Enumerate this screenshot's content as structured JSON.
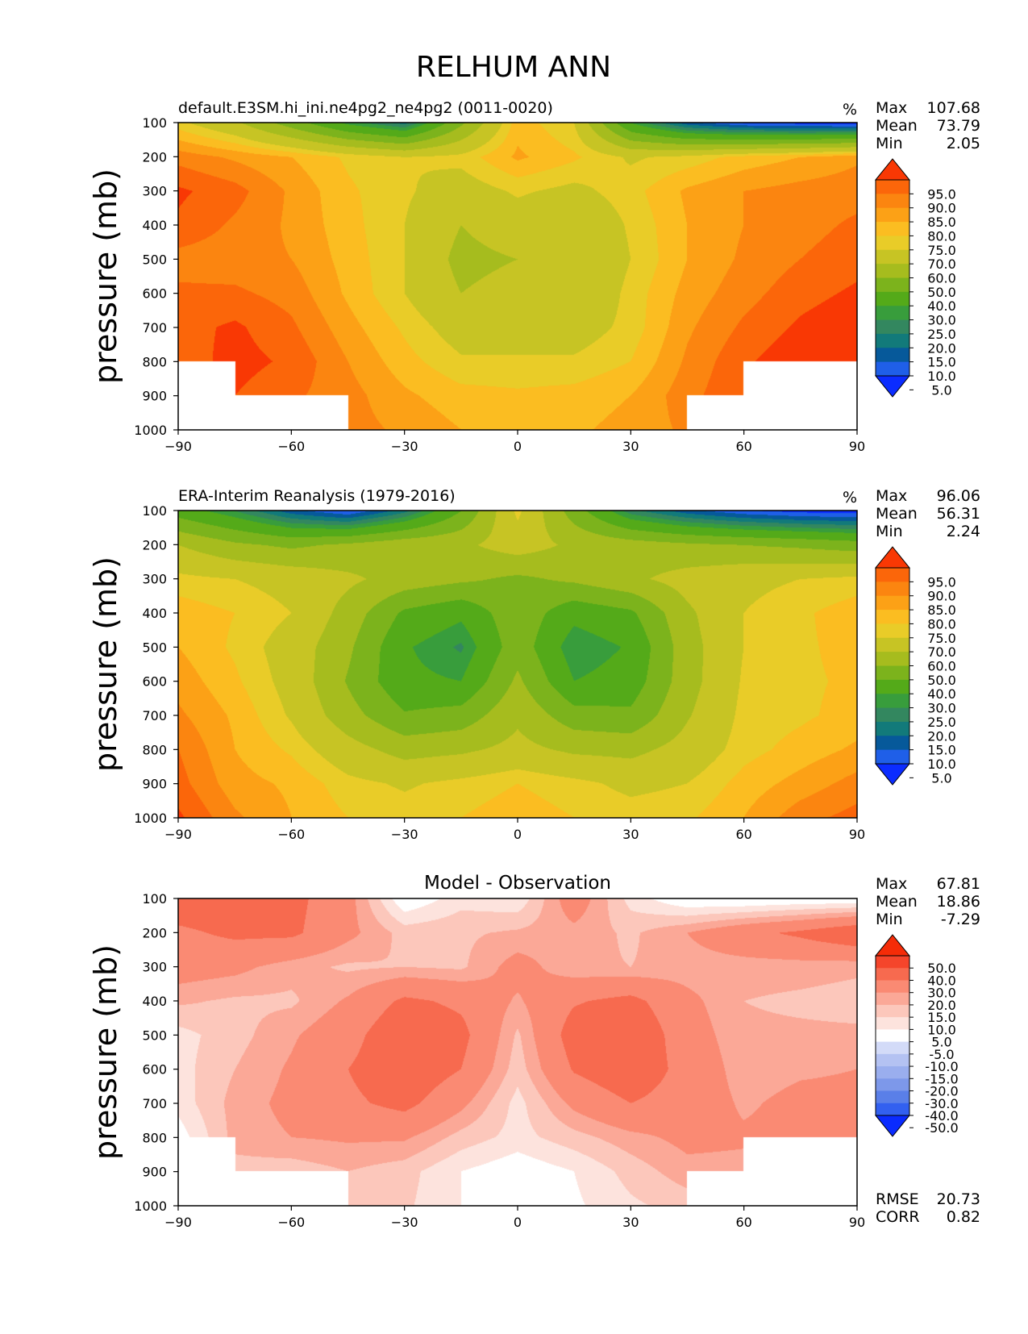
{
  "figure": {
    "title": "RELHUM ANN"
  },
  "colors": {
    "seq_levels": [
      -1000,
      5,
      10,
      15,
      20,
      25,
      30,
      40,
      50,
      60,
      70,
      75,
      80,
      85,
      90,
      95,
      1000
    ],
    "seq_colors": [
      "#0b2cff",
      "#1f5fe8",
      "#06599a",
      "#127a7a",
      "#33875f",
      "#389d3c",
      "#54aa19",
      "#7cb31c",
      "#a6bc1e",
      "#c7c424",
      "#e9cc28",
      "#fbbd21",
      "#fca116",
      "#fb8510",
      "#fb660a",
      "#f93804"
    ],
    "diff_levels": [
      -1000,
      -50,
      -40,
      -30,
      -20,
      -15,
      -10,
      -5,
      5,
      10,
      15,
      20,
      30,
      40,
      50,
      1000
    ],
    "diff_colors": [
      "#0a2bff",
      "#3260f0",
      "#5a7fe8",
      "#7d98ea",
      "#9aaeee",
      "#b4c2f2",
      "#d3dbf8",
      "#ffffff",
      "#fde3dd",
      "#fcc7bb",
      "#fba897",
      "#fa8a73",
      "#f76a4f",
      "#f5452b",
      "#f52c08"
    ]
  },
  "chart_data": [
    {
      "type": "contour",
      "panel": "model",
      "title_left": "default.E3SM.hi_ini.ne4pg2_ne4pg2 (0011-0020)",
      "units": "%",
      "stats": [
        {
          "label": "Max",
          "value": "107.68"
        },
        {
          "label": "Mean",
          "value": "73.79"
        },
        {
          "label": "Min",
          "value": "2.05"
        }
      ],
      "xlabel": "",
      "ylabel": "pressure (mb)",
      "x_ticks": [
        "−90",
        "−60",
        "−30",
        "0",
        "30",
        "60",
        "90"
      ],
      "y_ticks": [
        "100",
        "200",
        "300",
        "400",
        "500",
        "600",
        "700",
        "800",
        "900",
        "1000"
      ],
      "xlim": [
        -90,
        90
      ],
      "ylim": [
        1000,
        100
      ],
      "colorbar_labels": [
        "95.0",
        "90.0",
        "85.0",
        "80.0",
        "75.0",
        "70.0",
        "60.0",
        "50.0",
        "40.0",
        "30.0",
        "25.0",
        "20.0",
        "15.0",
        "10.0",
        "5.0"
      ],
      "lat": [
        -90,
        -75,
        -60,
        -45,
        -30,
        -15,
        0,
        15,
        30,
        45,
        60,
        75,
        90
      ],
      "plev": [
        100,
        200,
        300,
        400,
        500,
        600,
        700,
        800,
        900,
        1000
      ],
      "values": [
        [
          72,
          62,
          45,
          28,
          18,
          48,
          78,
          70,
          30,
          12,
          5,
          3,
          2
        ],
        [
          88,
          84,
          80,
          74,
          70,
          72,
          81,
          76,
          69,
          72,
          77,
          80,
          84
        ],
        [
          96,
          92,
          84,
          76,
          71,
          66,
          71,
          68,
          73,
          81,
          85,
          87,
          88
        ],
        [
          94,
          89,
          84,
          77,
          70,
          60,
          66,
          62,
          71,
          80,
          85,
          88,
          91
        ],
        [
          88,
          87,
          85,
          78,
          70,
          57,
          60,
          60,
          70,
          80,
          86,
          90,
          93
        ],
        [
          91,
          91,
          88,
          79,
          70,
          60,
          64,
          61,
          72,
          82,
          88,
          93,
          96
        ],
        [
          93,
          96,
          91,
          82,
          74,
          66,
          66,
          66,
          72,
          84,
          91,
          96,
          99
        ],
        [
          92,
          97,
          94,
          85,
          77,
          71,
          71,
          71,
          75,
          86,
          94,
          99,
          101
        ],
        [
          null,
          95,
          91,
          87,
          81,
          77,
          76,
          77,
          80,
          88,
          95,
          null,
          103
        ],
        [
          null,
          null,
          null,
          87,
          84,
          80,
          79,
          79,
          82,
          86,
          null,
          null,
          105
        ]
      ]
    },
    {
      "type": "contour",
      "panel": "observation",
      "title_left": "ERA-Interim Reanalysis (1979-2016)",
      "units": "%",
      "stats": [
        {
          "label": "Max",
          "value": "96.06"
        },
        {
          "label": "Mean",
          "value": "56.31"
        },
        {
          "label": "Min",
          "value": "2.24"
        }
      ],
      "xlabel": "",
      "ylabel": "pressure (mb)",
      "x_ticks": [
        "−90",
        "−60",
        "−30",
        "0",
        "30",
        "60",
        "90"
      ],
      "y_ticks": [
        "100",
        "200",
        "300",
        "400",
        "500",
        "600",
        "700",
        "800",
        "900",
        "1000"
      ],
      "xlim": [
        -90,
        90
      ],
      "ylim": [
        1000,
        100
      ],
      "colorbar_labels": [
        "95.0",
        "90.0",
        "85.0",
        "80.0",
        "75.0",
        "70.0",
        "60.0",
        "50.0",
        "40.0",
        "30.0",
        "25.0",
        "20.0",
        "15.0",
        "10.0",
        "5.0"
      ],
      "lat": [
        -90,
        -75,
        -60,
        -45,
        -30,
        -15,
        0,
        15,
        30,
        45,
        60,
        75,
        90
      ],
      "plev": [
        100,
        200,
        300,
        400,
        500,
        600,
        700,
        800,
        900,
        1000
      ],
      "values": [
        [
          35,
          25,
          12,
          5,
          18,
          40,
          72,
          45,
          22,
          12,
          6,
          3,
          2
        ],
        [
          60,
          52,
          48,
          52,
          57,
          58,
          65,
          58,
          55,
          52,
          50,
          48,
          45
        ],
        [
          72,
          70,
          67,
          62,
          56,
          52,
          48,
          52,
          58,
          64,
          68,
          70,
          72
        ],
        [
          78,
          75,
          70,
          56,
          38,
          32,
          47,
          33,
          38,
          58,
          70,
          74,
          78
        ],
        [
          80,
          74,
          66,
          52,
          31,
          24,
          46,
          25,
          31,
          56,
          70,
          74,
          77
        ],
        [
          83,
          76,
          67,
          49,
          32,
          30,
          52,
          30,
          34,
          56,
          71,
          74,
          76
        ],
        [
          86,
          79,
          69,
          54,
          41,
          44,
          58,
          44,
          42,
          59,
          72,
          74,
          77
        ],
        [
          90,
          80,
          74,
          64,
          56,
          58,
          63,
          58,
          57,
          64,
          73,
          77,
          81
        ],
        [
          92,
          82,
          79,
          72,
          69,
          72,
          75,
          72,
          68,
          70,
          77,
          82,
          87
        ],
        [
          96,
          86,
          80,
          75,
          73,
          75,
          78,
          75,
          73,
          74,
          80,
          88,
          92
        ]
      ]
    },
    {
      "type": "contour",
      "panel": "difference",
      "title_center": "Model - Observation",
      "stats": [
        {
          "label": "Max",
          "value": "67.81"
        },
        {
          "label": "Mean",
          "value": "18.86"
        },
        {
          "label": "Min",
          "value": "-7.29"
        }
      ],
      "metrics": [
        {
          "label": "RMSE",
          "value": "20.73"
        },
        {
          "label": "CORR",
          "value": "0.82"
        }
      ],
      "xlabel": "",
      "ylabel": "pressure (mb)",
      "x_ticks": [
        "−90",
        "−60",
        "−30",
        "0",
        "30",
        "60",
        "90"
      ],
      "y_ticks": [
        "100",
        "200",
        "300",
        "400",
        "500",
        "600",
        "700",
        "800",
        "900",
        "1000"
      ],
      "xlim": [
        -90,
        90
      ],
      "ylim": [
        1000,
        100
      ],
      "colorbar_labels": [
        "50.0",
        "40.0",
        "30.0",
        "20.0",
        "15.0",
        "10.0",
        "5.0",
        "-5.0",
        "-10.0",
        "-15.0",
        "-20.0",
        "-30.0",
        "-40.0",
        "-50.0"
      ],
      "lat": [
        -90,
        -75,
        -60,
        -45,
        -30,
        -15,
        0,
        15,
        30,
        45,
        60,
        75,
        90
      ],
      "plev": [
        100,
        200,
        300,
        400,
        500,
        600,
        700,
        800,
        900,
        1000
      ],
      "values": [
        [
          37,
          37,
          33,
          23,
          0,
          8,
          6,
          25,
          8,
          0,
          -1,
          0,
          0
        ],
        [
          28,
          32,
          32,
          22,
          13,
          14,
          16,
          18,
          14,
          20,
          27,
          32,
          39
        ],
        [
          24,
          22,
          17,
          14,
          15,
          14,
          23,
          16,
          15,
          17,
          17,
          17,
          16
        ],
        [
          16,
          14,
          14,
          21,
          32,
          28,
          19,
          29,
          33,
          22,
          15,
          14,
          13
        ],
        [
          8,
          13,
          19,
          26,
          39,
          33,
          14,
          35,
          39,
          24,
          16,
          16,
          16
        ],
        [
          8,
          15,
          21,
          30,
          38,
          30,
          12,
          31,
          38,
          26,
          17,
          19,
          20
        ],
        [
          7,
          17,
          22,
          28,
          33,
          22,
          8,
          22,
          30,
          25,
          19,
          22,
          22
        ],
        [
          2,
          17,
          20,
          21,
          21,
          13,
          8,
          13,
          18,
          22,
          21,
          22,
          20
        ],
        [
          null,
          13,
          12,
          15,
          12,
          5,
          1,
          5,
          12,
          18,
          18,
          null,
          16
        ],
        [
          null,
          null,
          null,
          12,
          11,
          5,
          1,
          4,
          9,
          12,
          null,
          null,
          13
        ]
      ]
    }
  ]
}
